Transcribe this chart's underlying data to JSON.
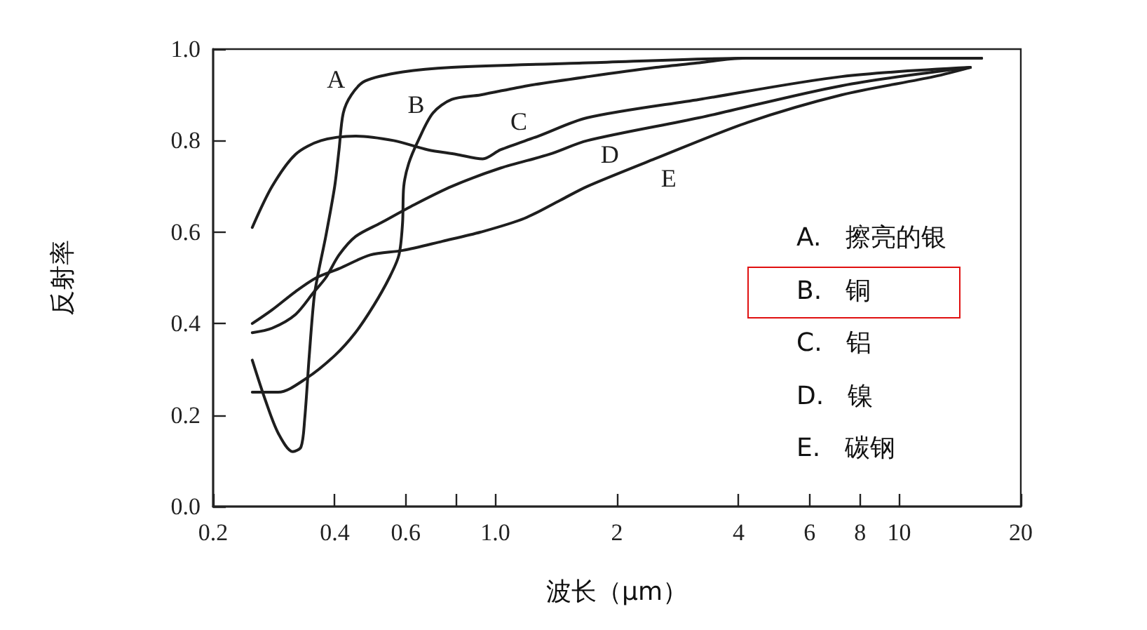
{
  "chart_data": {
    "type": "line",
    "xlabel": "波长（μm）",
    "ylabel": "反射率",
    "log": "x",
    "marker": "none",
    "line_style": "solid",
    "xlim": [
      0.2,
      20
    ],
    "xticks": [
      0.2,
      0.4,
      0.6,
      {
        "value": 0.8,
        "label": null
      },
      {
        "value": 1,
        "label": "1.0"
      },
      2,
      4,
      6,
      8,
      10,
      20
    ],
    "ylim": [
      0,
      1
    ],
    "yticks": [
      {
        "value": 0,
        "label": "0.0"
      },
      0.2,
      0.4,
      0.6,
      0.8,
      {
        "value": 1,
        "label": "1.0"
      }
    ],
    "series": [
      {
        "name": "A",
        "color": "#1e1e1e",
        "x": [
          0.25,
          0.27,
          0.29,
          0.315,
          0.33,
          0.337,
          0.346,
          0.356,
          0.366,
          0.38,
          0.4,
          0.41,
          0.42,
          0.44,
          0.475,
          0.59,
          0.78,
          1.7,
          4.2,
          16
        ],
        "values": [
          0.32,
          0.23,
          0.16,
          0.12,
          0.13,
          0.19,
          0.33,
          0.46,
          0.52,
          0.59,
          0.7,
          0.78,
          0.86,
          0.9,
          0.93,
          0.95,
          0.96,
          0.97,
          0.98,
          0.98
        ]
      },
      {
        "name": "B",
        "color": "#1e1e1e",
        "x": [
          0.25,
          0.29,
          0.34,
          0.4,
          0.45,
          0.5,
          0.546,
          0.577,
          0.589,
          0.593,
          0.61,
          0.644,
          0.7,
          0.78,
          0.92,
          1.2,
          1.7,
          2.5,
          3.2,
          4.1,
          16
        ],
        "values": [
          0.25,
          0.25,
          0.28,
          0.33,
          0.38,
          0.44,
          0.5,
          0.55,
          0.62,
          0.7,
          0.75,
          0.8,
          0.86,
          0.89,
          0.9,
          0.92,
          0.94,
          0.96,
          0.97,
          0.98,
          0.98
        ]
      },
      {
        "name": "C",
        "color": "#1e1e1e",
        "x": [
          0.25,
          0.28,
          0.32,
          0.37,
          0.45,
          0.56,
          0.68,
          0.8,
          0.93,
          1.03,
          1.28,
          1.69,
          3.2,
          7.2,
          15
        ],
        "values": [
          0.61,
          0.7,
          0.77,
          0.8,
          0.81,
          0.8,
          0.78,
          0.77,
          0.76,
          0.78,
          0.81,
          0.85,
          0.89,
          0.94,
          0.96
        ]
      },
      {
        "name": "D",
        "color": "#1e1e1e",
        "x": [
          0.25,
          0.28,
          0.32,
          0.356,
          0.38,
          0.41,
          0.45,
          0.52,
          0.63,
          0.78,
          1.03,
          1.36,
          1.69,
          3.2,
          7.2,
          15
        ],
        "values": [
          0.38,
          0.39,
          0.42,
          0.47,
          0.5,
          0.55,
          0.59,
          0.62,
          0.66,
          0.7,
          0.74,
          0.77,
          0.8,
          0.85,
          0.92,
          0.96
        ]
      },
      {
        "name": "E",
        "color": "#1e1e1e",
        "x": [
          0.25,
          0.28,
          0.32,
          0.36,
          0.41,
          0.49,
          0.59,
          0.74,
          0.92,
          1.18,
          1.45,
          1.69,
          2.48,
          4.22,
          7.2,
          12.2,
          15
        ],
        "values": [
          0.4,
          0.43,
          0.47,
          0.5,
          0.52,
          0.55,
          0.56,
          0.58,
          0.6,
          0.63,
          0.67,
          0.7,
          0.76,
          0.84,
          0.9,
          0.94,
          0.96
        ]
      }
    ],
    "annotations": [
      "A.   擦亮的银",
      "B.   铜",
      "C.   铝",
      "D.   镍",
      "E.   碳钢"
    ]
  }
}
